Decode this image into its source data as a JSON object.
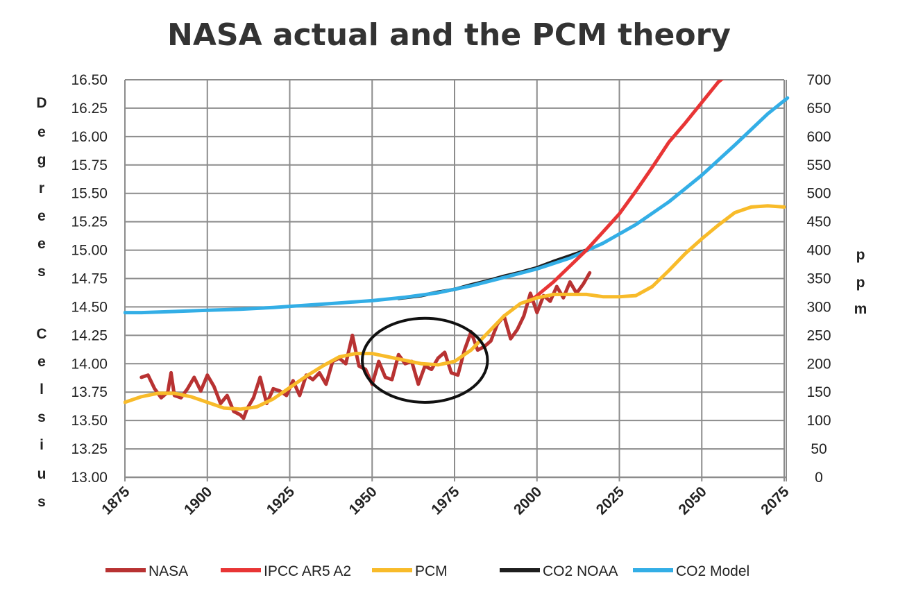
{
  "chart_data": {
    "type": "line",
    "title": "NASA actual and the PCM theory",
    "ylabel_left": "Degrees Celsius",
    "ylabel_left_letters": [
      "D",
      "e",
      "g",
      "r",
      "e",
      "e",
      "s",
      "C",
      "e",
      "l",
      "s",
      "i",
      "u",
      "s"
    ],
    "ylabel_right": "ppm",
    "ylabel_right_letters": [
      "p",
      "p",
      "m"
    ],
    "xlim": [
      1875,
      2075
    ],
    "ylim_left": [
      13.0,
      16.5
    ],
    "ylim_right": [
      0,
      700
    ],
    "x_ticks": [
      "1875",
      "1900",
      "1925",
      "1950",
      "1975",
      "2000",
      "2025",
      "2050",
      "2075"
    ],
    "y_left_ticks": [
      "13.00",
      "13.25",
      "13.50",
      "13.75",
      "14.00",
      "14.25",
      "14.50",
      "14.75",
      "15.00",
      "15.25",
      "15.50",
      "15.75",
      "16.00",
      "16.25",
      "16.50"
    ],
    "y_right_ticks": [
      "0",
      "50",
      "100",
      "150",
      "200",
      "250",
      "300",
      "350",
      "400",
      "450",
      "500",
      "550",
      "600",
      "650",
      "700"
    ],
    "grid": true,
    "legend_position": "bottom",
    "series": [
      {
        "name": "NASA",
        "axis": "left",
        "color": "#B83232",
        "x": [
          1880,
          1882,
          1884,
          1886,
          1888,
          1889,
          1890,
          1892,
          1894,
          1896,
          1898,
          1900,
          1902,
          1904,
          1906,
          1908,
          1910,
          1911,
          1912,
          1914,
          1916,
          1918,
          1920,
          1922,
          1924,
          1926,
          1928,
          1930,
          1932,
          1934,
          1936,
          1938,
          1940,
          1942,
          1944,
          1946,
          1948,
          1950,
          1952,
          1954,
          1956,
          1958,
          1960,
          1962,
          1964,
          1966,
          1968,
          1970,
          1972,
          1974,
          1976,
          1978,
          1980,
          1982,
          1984,
          1986,
          1988,
          1990,
          1992,
          1994,
          1996,
          1998,
          2000,
          2002,
          2004,
          2006,
          2008,
          2010,
          2012,
          2014,
          2016
        ],
        "values": [
          13.88,
          13.9,
          13.78,
          13.7,
          13.75,
          13.92,
          13.72,
          13.7,
          13.78,
          13.88,
          13.76,
          13.9,
          13.8,
          13.65,
          13.72,
          13.58,
          13.55,
          13.52,
          13.6,
          13.7,
          13.88,
          13.65,
          13.78,
          13.76,
          13.72,
          13.85,
          13.72,
          13.9,
          13.86,
          13.92,
          13.82,
          14.02,
          14.05,
          14.0,
          14.25,
          13.98,
          13.95,
          13.82,
          14.02,
          13.88,
          13.86,
          14.08,
          14.0,
          14.02,
          13.82,
          13.98,
          13.95,
          14.05,
          14.1,
          13.92,
          13.9,
          14.12,
          14.28,
          14.12,
          14.15,
          14.2,
          14.35,
          14.42,
          14.22,
          14.3,
          14.42,
          14.62,
          14.45,
          14.6,
          14.55,
          14.68,
          14.58,
          14.72,
          14.62,
          14.7,
          14.8
        ]
      },
      {
        "name": "IPCC AR5 A2",
        "axis": "left",
        "color": "#E83535",
        "x": [
          1998,
          2000,
          2005,
          2010,
          2015,
          2020,
          2025,
          2030,
          2035,
          2040,
          2045,
          2050,
          2055,
          2058
        ],
        "values": [
          14.55,
          14.6,
          14.72,
          14.86,
          15.0,
          15.16,
          15.32,
          15.52,
          15.73,
          15.95,
          16.12,
          16.3,
          16.48,
          16.55
        ]
      },
      {
        "name": "PCM",
        "axis": "left",
        "color": "#F8BB2A",
        "x": [
          1875,
          1880,
          1885,
          1890,
          1895,
          1900,
          1905,
          1910,
          1915,
          1920,
          1925,
          1930,
          1935,
          1940,
          1945,
          1950,
          1955,
          1960,
          1965,
          1970,
          1975,
          1980,
          1985,
          1990,
          1995,
          2000,
          2005,
          2010,
          2015,
          2020,
          2025,
          2030,
          2035,
          2040,
          2045,
          2050,
          2055,
          2060,
          2065,
          2070,
          2075
        ],
        "values": [
          13.66,
          13.71,
          13.74,
          13.74,
          13.71,
          13.66,
          13.61,
          13.6,
          13.62,
          13.69,
          13.79,
          13.89,
          13.98,
          14.06,
          14.09,
          14.09,
          14.06,
          14.03,
          14.0,
          13.99,
          14.02,
          14.12,
          14.27,
          14.42,
          14.53,
          14.58,
          14.61,
          14.61,
          14.61,
          14.59,
          14.59,
          14.6,
          14.68,
          14.82,
          14.97,
          15.1,
          15.22,
          15.33,
          15.38,
          15.39,
          15.38
        ]
      },
      {
        "name": "CO2 NOAA",
        "axis": "right",
        "color": "#1E1E1E",
        "x": [
          1958,
          1965,
          1970,
          1975,
          1980,
          1985,
          1990,
          1995,
          2000,
          2005,
          2010,
          2015
        ],
        "values": [
          315,
          320,
          326,
          331,
          339,
          346,
          354,
          361,
          369,
          380,
          390,
          400
        ]
      },
      {
        "name": "CO2 Model",
        "axis": "right",
        "color": "#33AEE6",
        "x": [
          1875,
          1880,
          1890,
          1900,
          1910,
          1920,
          1930,
          1940,
          1950,
          1960,
          1970,
          1980,
          1990,
          2000,
          2010,
          2020,
          2030,
          2040,
          2050,
          2060,
          2070,
          2076
        ],
        "values": [
          290,
          290,
          292,
          294,
          296,
          299,
          303,
          307,
          311,
          317,
          325,
          337,
          352,
          367,
          386,
          412,
          445,
          485,
          532,
          585,
          640,
          668
        ]
      }
    ],
    "annotations": [
      {
        "type": "ellipse",
        "center_x": 1966,
        "center_y": 14.03,
        "rx_years": 19,
        "ry_degrees": 0.37
      }
    ]
  }
}
